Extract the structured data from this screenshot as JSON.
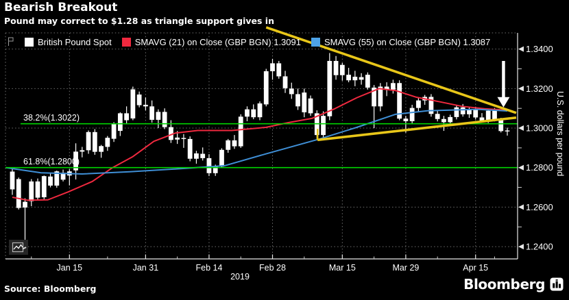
{
  "header": {
    "title": "Bearish Breakout",
    "subtitle": "Pound may correct to $1.28 as triangle support gives in"
  },
  "legend": {
    "items": [
      {
        "swatch": "#ffffff",
        "label": "British Pound Spot"
      },
      {
        "swatch": "#f0293f",
        "label": "SMAVG (21)  on Close (GBP BGN) 1.3091"
      },
      {
        "swatch": "#4da3e8",
        "label": "SMAVG (55)  on Close (GBP BGN) 1.3087"
      }
    ]
  },
  "chart_data": {
    "type": "candlestick",
    "title": "British Pound Spot",
    "xlabel": "2019",
    "ylabel": "U.S. dollars per pound",
    "ylim": [
      1.2338,
      1.3482
    ],
    "grid": true,
    "candle_color": "#ffffff",
    "y_ticks": [
      {
        "label": "1.2400",
        "value": 1.24
      },
      {
        "label": "1.2600",
        "value": 1.26
      },
      {
        "label": "1.2800",
        "value": 1.28
      },
      {
        "label": "1.3000",
        "value": 1.3
      },
      {
        "label": "1.3200",
        "value": 1.32
      },
      {
        "label": "1.3400",
        "value": 1.34
      }
    ],
    "y_minor_ticks": [
      1.25,
      1.27,
      1.29,
      1.31,
      1.33
    ],
    "x_ticks": [
      {
        "label": "Jan 15",
        "index": 9
      },
      {
        "label": "Jan 31",
        "index": 21
      },
      {
        "label": "Feb 14",
        "index": 31
      },
      {
        "label": "Feb 28",
        "index": 41
      },
      {
        "label": "Mar 15",
        "index": 52
      },
      {
        "label": "Mar 29",
        "index": 62
      },
      {
        "label": "Apr 15",
        "index": 73
      }
    ],
    "x_minor_tick_indices": [
      3,
      15,
      26,
      36,
      46,
      57,
      67,
      76
    ],
    "ohlc": [
      [
        1.278,
        1.2798,
        1.2662,
        1.269
      ],
      [
        1.2742,
        1.275,
        1.2588,
        1.2596
      ],
      [
        1.2598,
        1.2645,
        1.242,
        1.2627
      ],
      [
        1.263,
        1.2742,
        1.2605,
        1.273
      ],
      [
        1.273,
        1.2745,
        1.2635,
        1.2648
      ],
      [
        1.265,
        1.276,
        1.264,
        1.2757
      ],
      [
        1.2755,
        1.277,
        1.27,
        1.2709
      ],
      [
        1.2709,
        1.2785,
        1.2698,
        1.2781
      ],
      [
        1.2774,
        1.279,
        1.273,
        1.2739
      ],
      [
        1.276,
        1.2792,
        1.271,
        1.2781
      ],
      [
        1.2786,
        1.2923,
        1.274,
        1.2881
      ],
      [
        1.2881,
        1.2905,
        1.2852,
        1.2888
      ],
      [
        1.2888,
        1.2988,
        1.287,
        1.298
      ],
      [
        1.298,
        1.2995,
        1.2865,
        1.288
      ],
      [
        1.288,
        1.2915,
        1.285,
        1.2909
      ],
      [
        1.2905,
        1.296,
        1.2885,
        1.2951
      ],
      [
        1.2946,
        1.303,
        1.293,
        1.3022
      ],
      [
        1.2986,
        1.308,
        1.296,
        1.3075
      ],
      [
        1.3075,
        1.311,
        1.302,
        1.304
      ],
      [
        1.3049,
        1.321,
        1.304,
        1.3196
      ],
      [
        1.317,
        1.3185,
        1.3105,
        1.3116
      ],
      [
        1.3118,
        1.3155,
        1.309,
        1.311
      ],
      [
        1.311,
        1.314,
        1.3028,
        1.3042
      ],
      [
        1.3042,
        1.3095,
        1.3,
        1.3082
      ],
      [
        1.3082,
        1.31,
        1.2995,
        1.3005
      ],
      [
        1.3005,
        1.304,
        1.2925,
        1.294
      ],
      [
        1.2942,
        1.2985,
        1.292,
        1.2952
      ],
      [
        1.295,
        1.297,
        1.29,
        1.2945
      ],
      [
        1.2945,
        1.2958,
        1.2832,
        1.2845
      ],
      [
        1.2845,
        1.2885,
        1.282,
        1.2872
      ],
      [
        1.287,
        1.2902,
        1.2836,
        1.2848
      ],
      [
        1.2848,
        1.2868,
        1.2757,
        1.2772
      ],
      [
        1.2772,
        1.2815,
        1.2758,
        1.2805
      ],
      [
        1.2805,
        1.2898,
        1.28,
        1.289
      ],
      [
        1.289,
        1.2945,
        1.2875,
        1.2938
      ],
      [
        1.2938,
        1.2965,
        1.2895,
        1.2908
      ],
      [
        1.2908,
        1.307,
        1.29,
        1.3058
      ],
      [
        1.3058,
        1.311,
        1.3035,
        1.3095
      ],
      [
        1.3095,
        1.312,
        1.3045,
        1.3055
      ],
      [
        1.3055,
        1.3135,
        1.304,
        1.3125
      ],
      [
        1.312,
        1.33,
        1.311,
        1.3288
      ],
      [
        1.3288,
        1.335,
        1.3245,
        1.3328
      ],
      [
        1.3328,
        1.334,
        1.325,
        1.3262
      ],
      [
        1.3262,
        1.329,
        1.3178,
        1.3202
      ],
      [
        1.32,
        1.323,
        1.3148,
        1.3172
      ],
      [
        1.3172,
        1.32,
        1.3092,
        1.311
      ],
      [
        1.308,
        1.32,
        1.3055,
        1.318
      ],
      [
        1.315,
        1.3165,
        1.3062,
        1.3075
      ],
      [
        1.3075,
        1.309,
        1.2945,
        1.2965
      ],
      [
        1.2965,
        1.3085,
        1.295,
        1.3062
      ],
      [
        1.306,
        1.338,
        1.304,
        1.334
      ],
      [
        1.334,
        1.3365,
        1.3245,
        1.3268
      ],
      [
        1.3268,
        1.333,
        1.324,
        1.332
      ],
      [
        1.327,
        1.3305,
        1.3232,
        1.3242
      ],
      [
        1.3242,
        1.329,
        1.3212,
        1.326
      ],
      [
        1.3258,
        1.3278,
        1.322,
        1.3245
      ],
      [
        1.327,
        1.3282,
        1.3195,
        1.3205
      ],
      [
        1.3205,
        1.3218,
        1.3,
        1.311
      ],
      [
        1.311,
        1.3228,
        1.3085,
        1.321
      ],
      [
        1.321,
        1.3232,
        1.3162,
        1.3195
      ],
      [
        1.3195,
        1.3245,
        1.3175,
        1.3228
      ],
      [
        1.3228,
        1.3242,
        1.304,
        1.3048
      ],
      [
        1.3048,
        1.3062,
        1.2977,
        1.3035
      ],
      [
        1.3035,
        1.3118,
        1.302,
        1.3102
      ],
      [
        1.3102,
        1.3152,
        1.3082,
        1.314
      ],
      [
        1.314,
        1.3168,
        1.3118,
        1.3158
      ],
      [
        1.3158,
        1.3172,
        1.3058,
        1.3072
      ],
      [
        1.3072,
        1.3092,
        1.3034,
        1.3046
      ],
      [
        1.3046,
        1.3062,
        1.2986,
        1.303
      ],
      [
        1.303,
        1.3068,
        1.3018,
        1.3056
      ],
      [
        1.3056,
        1.3115,
        1.3044,
        1.3105
      ],
      [
        1.3105,
        1.3122,
        1.3058,
        1.307
      ],
      [
        1.307,
        1.3106,
        1.3052,
        1.3096
      ],
      [
        1.3096,
        1.3108,
        1.3044,
        1.3054
      ],
      [
        1.3054,
        1.3076,
        1.3028,
        1.3038
      ],
      [
        1.3038,
        1.3096,
        1.3026,
        1.3088
      ],
      [
        1.3088,
        1.3102,
        1.3034,
        1.3042
      ],
      [
        1.3042,
        1.3052,
        1.2978,
        1.2985
      ],
      [
        1.2985,
        1.3002,
        1.2962,
        1.2988
      ]
    ],
    "series": [
      {
        "name": "SMAVG (21) on Close",
        "color": "#f0293f",
        "last_value": 1.3091,
        "points": [
          [
            0,
            1.265
          ],
          [
            2.4,
            1.2635
          ],
          [
            5.6,
            1.2637
          ],
          [
            8.8,
            1.2677
          ],
          [
            12.6,
            1.273
          ],
          [
            15.8,
            1.28
          ],
          [
            19,
            1.2856
          ],
          [
            22.3,
            1.2933
          ],
          [
            25.7,
            1.2975
          ],
          [
            29.2,
            1.2988
          ],
          [
            34.6,
            1.2988
          ],
          [
            40,
            1.3004
          ],
          [
            43.5,
            1.3028
          ],
          [
            47.2,
            1.3049
          ],
          [
            50.8,
            1.3098
          ],
          [
            54.3,
            1.3154
          ],
          [
            57.8,
            1.32
          ],
          [
            60.4,
            1.319
          ],
          [
            63.7,
            1.3156
          ],
          [
            67.4,
            1.3133
          ],
          [
            70.9,
            1.311
          ],
          [
            74.4,
            1.3098
          ],
          [
            78,
            1.3091
          ]
        ]
      },
      {
        "name": "SMAVG (55) on Close",
        "color": "#3f8fd6",
        "last_value": 1.3087,
        "points": [
          [
            -1,
            1.28
          ],
          [
            4.5,
            1.2774
          ],
          [
            11,
            1.2768
          ],
          [
            18.5,
            1.2779
          ],
          [
            25.7,
            1.2793
          ],
          [
            33.5,
            1.281
          ],
          [
            40,
            1.287
          ],
          [
            48.3,
            1.2944
          ],
          [
            54.3,
            1.3004
          ],
          [
            60.4,
            1.307
          ],
          [
            65.5,
            1.3088
          ],
          [
            73.3,
            1.3095
          ],
          [
            78,
            1.3087
          ]
        ]
      }
    ],
    "fib_levels": {
      "color": "#00d500",
      "levels": [
        {
          "label": "38.2%(1.3022)",
          "price": 1.3022
        },
        {
          "label": "61.8%(1.2800)",
          "price": 1.28
        }
      ]
    },
    "annotations": {
      "triangle_color": "#e8c619",
      "triangle_upper": {
        "from": {
          "index": 40.0,
          "price": 1.351
        },
        "to": {
          "index": 79.4,
          "price": 1.3077
        }
      },
      "triangle_lower": {
        "from": {
          "index": 48.1,
          "price": 1.294
        },
        "to": {
          "index": 79.4,
          "price": 1.3053
        },
        "start_tick_price": 1.2996
      },
      "arrow": {
        "color": "#ffffff",
        "index": 77.4,
        "from_price": 1.334,
        "tip_price": 1.3105
      }
    }
  },
  "footer": {
    "source": "Source: Bloomberg",
    "brand": "Bloomberg"
  }
}
